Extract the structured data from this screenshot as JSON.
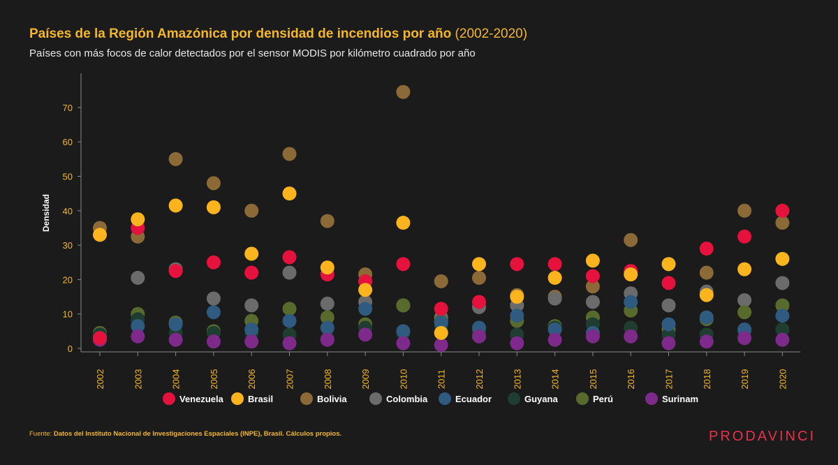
{
  "header": {
    "title_bold": "Países de la Región Amazónica por densidad de incendios por año",
    "title_years": "(2002-2020)",
    "subtitle": "Países con más focos de calor detectados por el sensor MODIS por kilómetro cuadrado por año"
  },
  "footer": {
    "source_label": "Fuente:",
    "source_text": "Datos del Instituto Nacional de Investigaciones Espaciales (INPE), Brasil. Cálculos propios.",
    "logo": "PRODAVINCI"
  },
  "chart_data": {
    "type": "scatter",
    "title": "Países de la Región Amazónica por densidad de incendios por año (2002-2020)",
    "ylabel": "Densidad",
    "xlabel": "",
    "ylim": [
      0,
      80
    ],
    "yticks": [
      0,
      10,
      20,
      30,
      40,
      50,
      60,
      70
    ],
    "grid": false,
    "legend_position": "bottom",
    "categories": [
      "2002",
      "2003",
      "2004",
      "2005",
      "2006",
      "2007",
      "2008",
      "2009",
      "2010",
      "2011",
      "2012",
      "2013",
      "2014",
      "2015",
      "2016",
      "2017",
      "2018",
      "2019",
      "2020"
    ],
    "series": [
      {
        "name": "Bolivia",
        "color": "#8c6a38",
        "values": [
          35.0,
          32.5,
          55.0,
          48.0,
          40.0,
          56.5,
          37.0,
          21.5,
          74.5,
          19.5,
          20.5,
          15.5,
          15.0,
          18.0,
          31.5,
          24.5,
          22.0,
          40.0,
          36.5
        ]
      },
      {
        "name": "Colombia",
        "color": "#6b6b6b",
        "values": [
          3.5,
          20.5,
          23.0,
          14.5,
          12.5,
          22.0,
          13.0,
          13.5,
          12.5,
          9.0,
          12.0,
          12.5,
          14.5,
          13.5,
          16.0,
          12.5,
          16.5,
          14.0,
          19.0
        ]
      },
      {
        "name": "Perú",
        "color": "#586b2c",
        "values": [
          4.5,
          10.0,
          7.5,
          5.0,
          8.0,
          11.5,
          9.0,
          7.0,
          12.5,
          8.0,
          5.0,
          8.0,
          6.5,
          9.0,
          11.0,
          5.5,
          8.5,
          10.5,
          12.5
        ]
      },
      {
        "name": "Guyana",
        "color": "#1f3d31",
        "values": [
          4.0,
          8.5,
          4.5,
          4.5,
          4.5,
          4.0,
          3.0,
          6.0,
          4.5,
          6.5,
          5.0,
          4.0,
          6.0,
          7.0,
          6.0,
          4.0,
          4.0,
          5.0,
          5.5
        ]
      },
      {
        "name": "Ecuador",
        "color": "#2f5b80",
        "values": [
          3.0,
          6.5,
          7.0,
          10.5,
          5.5,
          8.0,
          6.0,
          11.5,
          5.0,
          7.5,
          6.0,
          9.5,
          5.5,
          4.5,
          13.5,
          7.0,
          9.0,
          5.5,
          9.5
        ]
      },
      {
        "name": "Surinam",
        "color": "#7d2a8a",
        "values": [
          2.5,
          3.5,
          2.5,
          2.0,
          2.0,
          1.5,
          2.5,
          4.0,
          1.5,
          1.0,
          3.5,
          1.5,
          2.5,
          3.5,
          3.5,
          1.5,
          2.0,
          3.0,
          2.5
        ]
      },
      {
        "name": "Venezuela",
        "color": "#e5123d",
        "values": [
          3.0,
          35.0,
          22.5,
          25.0,
          22.0,
          26.5,
          21.5,
          19.5,
          24.5,
          11.5,
          13.5,
          24.5,
          24.5,
          21.0,
          22.5,
          19.0,
          29.0,
          32.5,
          40.0
        ]
      },
      {
        "name": "Brasil",
        "color": "#fbb41d",
        "values": [
          33.0,
          37.5,
          41.5,
          41.0,
          27.5,
          45.0,
          23.5,
          17.0,
          36.5,
          4.5,
          24.5,
          15.0,
          20.5,
          25.5,
          21.5,
          24.5,
          15.5,
          23.0,
          26.0
        ]
      }
    ],
    "legend_order": [
      "Venezuela",
      "Brasil",
      "Bolivia",
      "Colombia",
      "Ecuador",
      "Guyana",
      "Perú",
      "Surinam"
    ]
  }
}
